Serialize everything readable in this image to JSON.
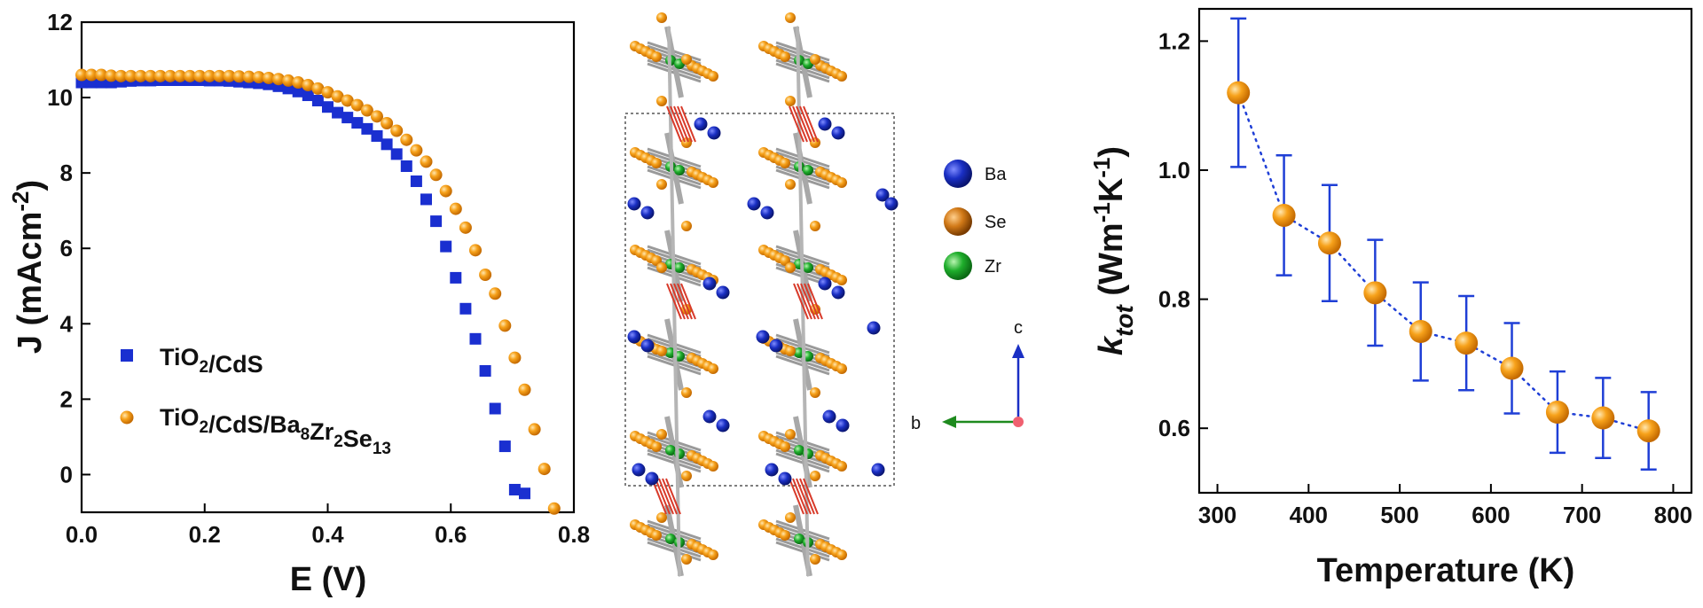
{
  "chart_data": [
    {
      "type": "scatter",
      "xlabel": "E (V)",
      "ylabel": "J (mAcm-2)",
      "ylabel_parts": {
        "base": "J (mAcm",
        "sup": "-2",
        "close": ")"
      },
      "xlim": [
        0,
        0.8
      ],
      "ylim": [
        -1,
        12
      ],
      "x_ticks": [
        0.0,
        0.2,
        0.4,
        0.6,
        0.8
      ],
      "x_tick_labels": [
        "0.0",
        "0.2",
        "0.4",
        "0.6",
        "0.8"
      ],
      "y_ticks": [
        0,
        2,
        4,
        6,
        8,
        10,
        12
      ],
      "y_tick_labels": [
        "0",
        "2",
        "4",
        "6",
        "8",
        "10",
        "12"
      ],
      "legend_position": "bottom-left",
      "series": [
        {
          "name": "TiO2/CdS",
          "name_parts": [
            [
              "TiO",
              ""
            ],
            [
              "2",
              "sub"
            ],
            [
              "/CdS",
              ""
            ]
          ],
          "marker": "square",
          "color": "#1a2fd0",
          "x": [
            0.0,
            0.016,
            0.032,
            0.048,
            0.064,
            0.08,
            0.096,
            0.112,
            0.128,
            0.144,
            0.16,
            0.176,
            0.192,
            0.208,
            0.224,
            0.24,
            0.256,
            0.272,
            0.288,
            0.304,
            0.32,
            0.336,
            0.352,
            0.368,
            0.384,
            0.4,
            0.416,
            0.432,
            0.448,
            0.464,
            0.48,
            0.496,
            0.512,
            0.528,
            0.544,
            0.56,
            0.576,
            0.592,
            0.608,
            0.624,
            0.64,
            0.656,
            0.672,
            0.688,
            0.704,
            0.72
          ],
          "y": [
            10.4,
            10.4,
            10.4,
            10.4,
            10.42,
            10.44,
            10.45,
            10.45,
            10.46,
            10.46,
            10.46,
            10.46,
            10.46,
            10.45,
            10.45,
            10.44,
            10.42,
            10.4,
            10.38,
            10.35,
            10.3,
            10.24,
            10.16,
            10.06,
            9.92,
            9.75,
            9.6,
            9.47,
            9.33,
            9.17,
            8.98,
            8.76,
            8.5,
            8.18,
            7.78,
            7.3,
            6.72,
            6.05,
            5.22,
            4.4,
            3.6,
            2.75,
            1.75,
            0.75,
            -0.4,
            -0.5
          ]
        },
        {
          "name": "TiO2/CdS/Ba8Zr2Se13",
          "name_parts": [
            [
              "TiO",
              ""
            ],
            [
              "2",
              "sub"
            ],
            [
              "/CdS/Ba",
              ""
            ],
            [
              "8",
              "sub"
            ],
            [
              "Zr",
              ""
            ],
            [
              "2",
              "sub"
            ],
            [
              "Se",
              ""
            ],
            [
              "13",
              "sub"
            ]
          ],
          "marker": "circle",
          "color": "#f7a21b",
          "x": [
            0.0,
            0.016,
            0.032,
            0.048,
            0.064,
            0.08,
            0.096,
            0.112,
            0.128,
            0.144,
            0.16,
            0.176,
            0.192,
            0.208,
            0.224,
            0.24,
            0.256,
            0.272,
            0.288,
            0.304,
            0.32,
            0.336,
            0.352,
            0.368,
            0.384,
            0.4,
            0.416,
            0.432,
            0.448,
            0.464,
            0.48,
            0.496,
            0.512,
            0.528,
            0.544,
            0.56,
            0.576,
            0.592,
            0.608,
            0.624,
            0.64,
            0.656,
            0.672,
            0.688,
            0.704,
            0.72,
            0.736,
            0.752,
            0.768
          ],
          "y": [
            10.6,
            10.6,
            10.6,
            10.58,
            10.57,
            10.57,
            10.57,
            10.57,
            10.57,
            10.57,
            10.57,
            10.57,
            10.57,
            10.57,
            10.57,
            10.57,
            10.56,
            10.55,
            10.54,
            10.52,
            10.49,
            10.45,
            10.4,
            10.33,
            10.24,
            10.14,
            10.03,
            9.92,
            9.8,
            9.66,
            9.5,
            9.32,
            9.12,
            8.88,
            8.6,
            8.3,
            7.95,
            7.52,
            7.05,
            6.55,
            5.95,
            5.3,
            4.8,
            3.95,
            3.1,
            2.25,
            1.2,
            0.15,
            -0.9
          ]
        }
      ]
    },
    {
      "type": "line",
      "xlabel": "Temperature (K)",
      "ylabel": "k_tot (Wm-1K-1)",
      "ylabel_parts": {
        "k": "k",
        "sub": "tot",
        "open": " (Wm",
        "sup1": "-1",
        "mid": "K",
        "sup2": "-1",
        "close": ")"
      },
      "xlim": [
        280,
        820
      ],
      "ylim": [
        0.5,
        1.25
      ],
      "x_ticks": [
        300,
        400,
        500,
        600,
        700,
        800
      ],
      "x_tick_labels": [
        "300",
        "400",
        "500",
        "600",
        "700",
        "800"
      ],
      "y_ticks": [
        0.6,
        0.8,
        1.0,
        1.2
      ],
      "y_tick_labels": [
        "0.6",
        "0.8",
        "1.0",
        "1.2"
      ],
      "marker_color": "#f7a21b",
      "line_color": "#1f3fd6",
      "series": [
        {
          "x": [
            323,
            373,
            423,
            473,
            523,
            573,
            623,
            673,
            723,
            773
          ],
          "y": [
            1.12,
            0.93,
            0.887,
            0.81,
            0.75,
            0.732,
            0.693,
            0.625,
            0.616,
            0.596
          ],
          "err": [
            0.115,
            0.093,
            0.09,
            0.082,
            0.076,
            0.073,
            0.07,
            0.063,
            0.062,
            0.06
          ]
        }
      ]
    }
  ],
  "crystal": {
    "legend": [
      {
        "label": "Ba",
        "color": "#1a2fc4"
      },
      {
        "label": "Se",
        "color": "#e08a1a"
      },
      {
        "label": "Zr",
        "color": "#1fae2c"
      }
    ],
    "axes": {
      "c_label": "c",
      "b_label": "b",
      "c_color": "#1a2fc4",
      "b_color": "#1e8a1e"
    }
  }
}
